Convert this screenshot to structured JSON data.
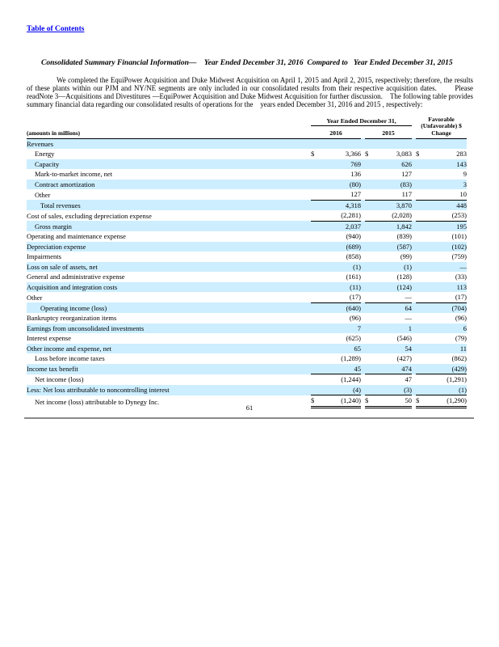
{
  "page": {
    "toc_link": "Table of Contents",
    "title": "Consolidated Summary Financial Information—    Year Ended December 31, 2016  Compared to   Year Ended December 31, 2015",
    "paragraph": "We completed the EquiPower Acquisition and Duke Midwest Acquisition on April 1, 2015 and April 2, 2015, respectively; therefore, the results of these plants within our PJM and NY/NE segments are only included in our consolidated results from their respective acquisition dates.       Please readNote 3—Acquisitions and Divestitures —EquiPower Acquisition and Duke Midwest Acquisition for further discussion.    The following table provides summary financial data regarding our consolidated results of operations for the    years ended December 31, 2016 and 2015 , respectively:",
    "page_number": "61"
  },
  "colors": {
    "row_shade": "#cceeff",
    "link_blue": "#0000ee"
  },
  "table": {
    "row_label_header": "(amounts in millions)",
    "col_group_header": "Year Ended December 31,",
    "col_headers": [
      "2016",
      "2015"
    ],
    "change_header_lines": [
      "Favorable",
      "(Unfavorable) $",
      "Change"
    ],
    "rows": [
      {
        "label": "Revenues",
        "indent": 0,
        "v2016": "",
        "v2015": "",
        "change": ""
      },
      {
        "label": "Energy",
        "indent": 1,
        "dollar": true,
        "v2016": "3,366",
        "v2015": "3,083",
        "change": "283"
      },
      {
        "label": "Capacity",
        "indent": 1,
        "v2016": "769",
        "v2015": "626",
        "change": "143"
      },
      {
        "label": "Mark-to-market income, net",
        "indent": 1,
        "v2016": "136",
        "v2015": "127",
        "change": "9"
      },
      {
        "label": "Contract amortization",
        "indent": 1,
        "v2016": "(80)",
        "v2015": "(83)",
        "change": "3"
      },
      {
        "label": "Other",
        "indent": 1,
        "rule": "bottom",
        "v2016": "127",
        "v2015": "117",
        "change": "10"
      },
      {
        "label": "Total revenues",
        "indent": 2,
        "v2016": "4,318",
        "v2015": "3,870",
        "change": "448"
      },
      {
        "label": "Cost of sales, excluding depreciation expense",
        "indent": 0,
        "rule": "bottom",
        "v2016": "(2,281)",
        "v2015": "(2,028)",
        "change": "(253)"
      },
      {
        "label": "Gross margin",
        "indent": 1,
        "v2016": "2,037",
        "v2015": "1,842",
        "change": "195"
      },
      {
        "label": "Operating and maintenance expense",
        "indent": 0,
        "v2016": "(940)",
        "v2015": "(839)",
        "change": "(101)"
      },
      {
        "label": "Depreciation expense",
        "indent": 0,
        "v2016": "(689)",
        "v2015": "(587)",
        "change": "(102)"
      },
      {
        "label": "Impairments",
        "indent": 0,
        "v2016": "(858)",
        "v2015": "(99)",
        "change": "(759)"
      },
      {
        "label": "Loss on sale of assets, net",
        "indent": 0,
        "v2016": "(1)",
        "v2015": "(1)",
        "change": "—"
      },
      {
        "label": "General and administrative expense",
        "indent": 0,
        "v2016": "(161)",
        "v2015": "(128)",
        "change": "(33)"
      },
      {
        "label": "Acquisition and integration costs",
        "indent": 0,
        "v2016": "(11)",
        "v2015": "(124)",
        "change": "113"
      },
      {
        "label": "Other",
        "indent": 0,
        "rule": "bottom",
        "v2016": "(17)",
        "v2015": "—",
        "change": "(17)"
      },
      {
        "label": "Operating income (loss)",
        "indent": 2,
        "v2016": "(640)",
        "v2015": "64",
        "change": "(704)"
      },
      {
        "label": "Bankruptcy reorganization items",
        "indent": 0,
        "v2016": "(96)",
        "v2015": "—",
        "change": "(96)"
      },
      {
        "label": "Earnings from unconsolidated investments",
        "indent": 0,
        "v2016": "7",
        "v2015": "1",
        "change": "6"
      },
      {
        "label": "Interest expense",
        "indent": 0,
        "v2016": "(625)",
        "v2015": "(546)",
        "change": "(79)"
      },
      {
        "label": "Other income and expense, net",
        "indent": 0,
        "v2016": "65",
        "v2015": "54",
        "change": "11"
      },
      {
        "label": "Loss before income taxes",
        "indent": 1,
        "v2016": "(1,289)",
        "v2015": "(427)",
        "change": "(862)"
      },
      {
        "label": "Income tax benefit",
        "indent": 0,
        "rule": "bottom",
        "v2016": "45",
        "v2015": "474",
        "change": "(429)"
      },
      {
        "label": "Net income (loss)",
        "indent": 1,
        "v2016": "(1,244)",
        "v2015": "47",
        "change": "(1,291)"
      },
      {
        "label": "Less: Net loss attributable to noncontrolling interest",
        "indent": 0,
        "rule": "bottom",
        "v2016": "(4)",
        "v2015": "(3)",
        "change": "(1)"
      },
      {
        "label": "Net income (loss) attributable to Dynegy Inc.",
        "indent": 1,
        "dollar": true,
        "rule": "double",
        "v2016": "(1,240)",
        "v2015": "50",
        "change": "(1,290)"
      }
    ]
  }
}
